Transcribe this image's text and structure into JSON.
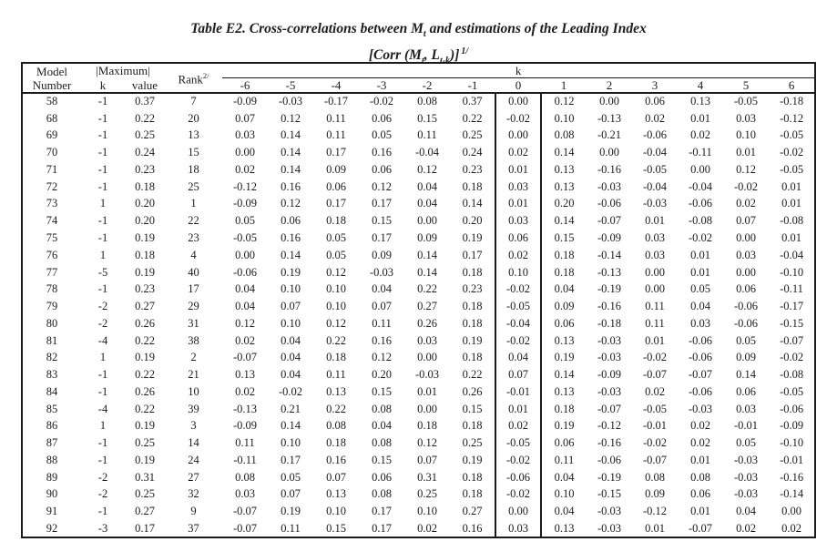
{
  "title": {
    "before_sub": "Table E2. Cross-correlations between M",
    "sub": "t",
    "after_sub": " and estimations of the Leading Index"
  },
  "subtitle": {
    "open": "[Corr (M",
    "sub1": "t",
    "mid": ", L",
    "sub2": "t-k",
    "close": ")]",
    "footnote": "1/"
  },
  "table": {
    "header": {
      "model_line1": "Model",
      "model_line2": "Number",
      "maximum_label": "|Maximum|",
      "maximum_sub_k": "k",
      "maximum_sub_value": "value",
      "rank_label": "Rank",
      "rank_footnote": "2/",
      "k_group_label": "k",
      "k_columns": [
        "-6",
        "-5",
        "-4",
        "-3",
        "-2",
        "-1",
        "0",
        "1",
        "2",
        "3",
        "4",
        "5",
        "6"
      ]
    },
    "rows": [
      {
        "model": "58",
        "k": "-1",
        "value": "0.37",
        "rank": "7",
        "corr": [
          "-0.09",
          "-0.03",
          "-0.17",
          "-0.02",
          "0.08",
          "0.37",
          "0.00",
          "0.12",
          "0.00",
          "0.06",
          "0.13",
          "-0.05",
          "-0.18"
        ]
      },
      {
        "model": "68",
        "k": "-1",
        "value": "0.22",
        "rank": "20",
        "corr": [
          "0.07",
          "0.12",
          "0.11",
          "0.06",
          "0.15",
          "0.22",
          "-0.02",
          "0.10",
          "-0.13",
          "0.02",
          "0.01",
          "0.03",
          "-0.12"
        ]
      },
      {
        "model": "69",
        "k": "-1",
        "value": "0.25",
        "rank": "13",
        "corr": [
          "0.03",
          "0.14",
          "0.11",
          "0.05",
          "0.11",
          "0.25",
          "0.00",
          "0.08",
          "-0.21",
          "-0.06",
          "0.02",
          "0.10",
          "-0.05"
        ]
      },
      {
        "model": "70",
        "k": "-1",
        "value": "0.24",
        "rank": "15",
        "corr": [
          "0.00",
          "0.14",
          "0.17",
          "0.16",
          "-0.04",
          "0.24",
          "0.02",
          "0.14",
          "0.00",
          "-0.04",
          "-0.11",
          "0.01",
          "-0.02"
        ]
      },
      {
        "model": "71",
        "k": "-1",
        "value": "0.23",
        "rank": "18",
        "corr": [
          "0.02",
          "0.14",
          "0.09",
          "0.06",
          "0.12",
          "0.23",
          "0.01",
          "0.13",
          "-0.16",
          "-0.05",
          "0.00",
          "0.12",
          "-0.05"
        ]
      },
      {
        "model": "72",
        "k": "-1",
        "value": "0.18",
        "rank": "25",
        "corr": [
          "-0.12",
          "0.16",
          "0.06",
          "0.12",
          "0.04",
          "0.18",
          "0.03",
          "0.13",
          "-0.03",
          "-0.04",
          "-0.04",
          "-0.02",
          "0.01"
        ]
      },
      {
        "model": "73",
        "k": "1",
        "value": "0.20",
        "rank": "1",
        "corr": [
          "-0.09",
          "0.12",
          "0.17",
          "0.17",
          "0.04",
          "0.14",
          "0.01",
          "0.20",
          "-0.06",
          "-0.03",
          "-0.06",
          "0.02",
          "0.01"
        ]
      },
      {
        "model": "74",
        "k": "-1",
        "value": "0.20",
        "rank": "22",
        "corr": [
          "0.05",
          "0.06",
          "0.18",
          "0.15",
          "0.00",
          "0.20",
          "0.03",
          "0.14",
          "-0.07",
          "0.01",
          "-0.08",
          "0.07",
          "-0.08"
        ]
      },
      {
        "model": "75",
        "k": "-1",
        "value": "0.19",
        "rank": "23",
        "corr": [
          "-0.05",
          "0.16",
          "0.05",
          "0.17",
          "0.09",
          "0.19",
          "0.06",
          "0.15",
          "-0.09",
          "0.03",
          "-0.02",
          "0.00",
          "0.01"
        ]
      },
      {
        "model": "76",
        "k": "1",
        "value": "0.18",
        "rank": "4",
        "corr": [
          "0.00",
          "0.14",
          "0.05",
          "0.09",
          "0.14",
          "0.17",
          "0.02",
          "0.18",
          "-0.14",
          "0.03",
          "0.01",
          "0.03",
          "-0.04"
        ]
      },
      {
        "model": "77",
        "k": "-5",
        "value": "0.19",
        "rank": "40",
        "corr": [
          "-0.06",
          "0.19",
          "0.12",
          "-0.03",
          "0.14",
          "0.18",
          "0.10",
          "0.18",
          "-0.13",
          "0.00",
          "0.01",
          "0.00",
          "-0.10"
        ]
      },
      {
        "model": "78",
        "k": "-1",
        "value": "0.23",
        "rank": "17",
        "corr": [
          "0.04",
          "0.10",
          "0.10",
          "0.04",
          "0.22",
          "0.23",
          "-0.02",
          "0.04",
          "-0.19",
          "0.00",
          "0.05",
          "0.06",
          "-0.11"
        ]
      },
      {
        "model": "79",
        "k": "-2",
        "value": "0.27",
        "rank": "29",
        "corr": [
          "0.04",
          "0.07",
          "0.10",
          "0.07",
          "0.27",
          "0.18",
          "-0.05",
          "0.09",
          "-0.16",
          "0.11",
          "0.04",
          "-0.06",
          "-0.17"
        ]
      },
      {
        "model": "80",
        "k": "-2",
        "value": "0.26",
        "rank": "31",
        "corr": [
          "0.12",
          "0.10",
          "0.12",
          "0.11",
          "0.26",
          "0.18",
          "-0.04",
          "0.06",
          "-0.18",
          "0.11",
          "0.03",
          "-0.06",
          "-0.15"
        ]
      },
      {
        "model": "81",
        "k": "-4",
        "value": "0.22",
        "rank": "38",
        "corr": [
          "0.02",
          "0.04",
          "0.22",
          "0.16",
          "0.03",
          "0.19",
          "-0.02",
          "0.13",
          "-0.03",
          "0.01",
          "-0.06",
          "0.05",
          "-0.07"
        ]
      },
      {
        "model": "82",
        "k": "1",
        "value": "0.19",
        "rank": "2",
        "corr": [
          "-0.07",
          "0.04",
          "0.18",
          "0.12",
          "0.00",
          "0.18",
          "0.04",
          "0.19",
          "-0.03",
          "-0.02",
          "-0.06",
          "0.09",
          "-0.02"
        ]
      },
      {
        "model": "83",
        "k": "-1",
        "value": "0.22",
        "rank": "21",
        "corr": [
          "0.13",
          "0.04",
          "0.11",
          "0.20",
          "-0.03",
          "0.22",
          "0.07",
          "0.14",
          "-0.09",
          "-0.07",
          "-0.07",
          "0.14",
          "-0.08"
        ]
      },
      {
        "model": "84",
        "k": "-1",
        "value": "0.26",
        "rank": "10",
        "corr": [
          "0.02",
          "-0.02",
          "0.13",
          "0.15",
          "0.01",
          "0.26",
          "-0.01",
          "0.13",
          "-0.03",
          "0.02",
          "-0.06",
          "0.06",
          "-0.05"
        ]
      },
      {
        "model": "85",
        "k": "-4",
        "value": "0.22",
        "rank": "39",
        "corr": [
          "-0.13",
          "0.21",
          "0.22",
          "0.08",
          "0.00",
          "0.15",
          "0.01",
          "0.18",
          "-0.07",
          "-0.05",
          "-0.03",
          "0.03",
          "-0.06"
        ]
      },
      {
        "model": "86",
        "k": "1",
        "value": "0.19",
        "rank": "3",
        "corr": [
          "-0.09",
          "0.14",
          "0.08",
          "0.04",
          "0.18",
          "0.18",
          "0.02",
          "0.19",
          "-0.12",
          "-0.01",
          "0.02",
          "-0.01",
          "-0.09"
        ]
      },
      {
        "model": "87",
        "k": "-1",
        "value": "0.25",
        "rank": "14",
        "corr": [
          "0.11",
          "0.10",
          "0.18",
          "0.08",
          "0.12",
          "0.25",
          "-0.05",
          "0.06",
          "-0.16",
          "-0.02",
          "0.02",
          "0.05",
          "-0.10"
        ]
      },
      {
        "model": "88",
        "k": "-1",
        "value": "0.19",
        "rank": "24",
        "corr": [
          "-0.11",
          "0.17",
          "0.16",
          "0.15",
          "0.07",
          "0.19",
          "-0.02",
          "0.11",
          "-0.06",
          "-0.07",
          "0.01",
          "-0.03",
          "-0.01"
        ]
      },
      {
        "model": "89",
        "k": "-2",
        "value": "0.31",
        "rank": "27",
        "corr": [
          "0.08",
          "0.05",
          "0.07",
          "0.06",
          "0.31",
          "0.18",
          "-0.06",
          "0.04",
          "-0.19",
          "0.08",
          "0.08",
          "-0.03",
          "-0.16"
        ]
      },
      {
        "model": "90",
        "k": "-2",
        "value": "0.25",
        "rank": "32",
        "corr": [
          "0.03",
          "0.07",
          "0.13",
          "0.08",
          "0.25",
          "0.18",
          "-0.02",
          "0.10",
          "-0.15",
          "0.09",
          "0.06",
          "-0.03",
          "-0.14"
        ]
      },
      {
        "model": "91",
        "k": "-1",
        "value": "0.27",
        "rank": "9",
        "corr": [
          "-0.07",
          "0.19",
          "0.10",
          "0.17",
          "0.10",
          "0.27",
          "0.00",
          "0.04",
          "-0.03",
          "-0.12",
          "0.01",
          "0.04",
          "0.00"
        ]
      },
      {
        "model": "92",
        "k": "-3",
        "value": "0.17",
        "rank": "37",
        "corr": [
          "-0.07",
          "0.11",
          "0.15",
          "0.17",
          "0.02",
          "0.16",
          "0.03",
          "0.13",
          "-0.03",
          "0.01",
          "-0.07",
          "0.02",
          "0.02"
        ]
      }
    ]
  }
}
